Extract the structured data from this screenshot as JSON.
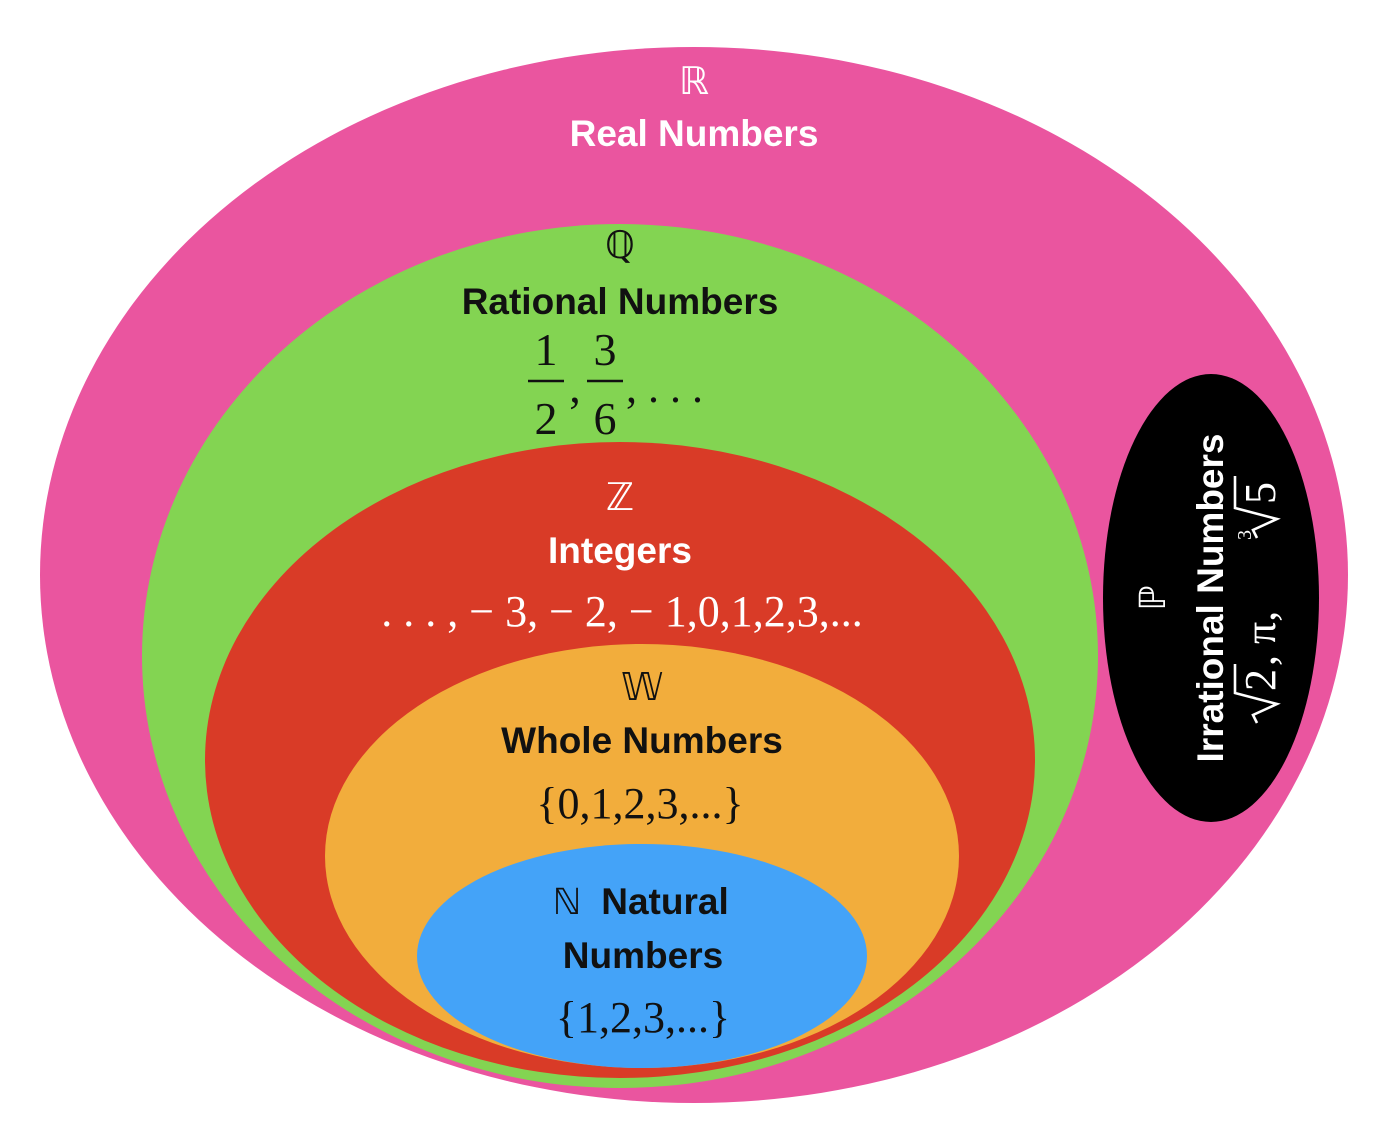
{
  "colors": {
    "real": "#EA559F",
    "rational": "#83D452",
    "integer": "#D93B27",
    "whole": "#F2AD3C",
    "natural": "#44A3F8",
    "irrational": "#000000",
    "light_text": "#FFFFFF",
    "dark_text": "#111111"
  },
  "sets": {
    "real": {
      "symbol": "ℝ",
      "name": "Real Numbers"
    },
    "rational": {
      "symbol": "ℚ",
      "name": "Rational Numbers",
      "examples": {
        "frac1_num": "1",
        "frac1_den": "2",
        "frac2_num": "3",
        "frac2_den": "6",
        "sep": ",",
        "tail": ", . . ."
      }
    },
    "integer": {
      "symbol": "ℤ",
      "name": "Integers",
      "examples": ". . . , − 3, − 2, − 1,0,1,2,3,..."
    },
    "whole": {
      "symbol": "𝕎",
      "name": "Whole Numbers",
      "examples": "{0,1,2,3,...}"
    },
    "natural": {
      "symbol": "ℕ",
      "name_line1": "Natural",
      "name_line2": "Numbers",
      "examples": "{1,2,3,...}"
    },
    "irrational": {
      "symbol": "ℙ",
      "name": "Irrational Numbers",
      "examples": {
        "sqrt2": "2",
        "pi_part": ", π, ",
        "cbrt_index": "3",
        "cbrt5": "5"
      }
    }
  }
}
